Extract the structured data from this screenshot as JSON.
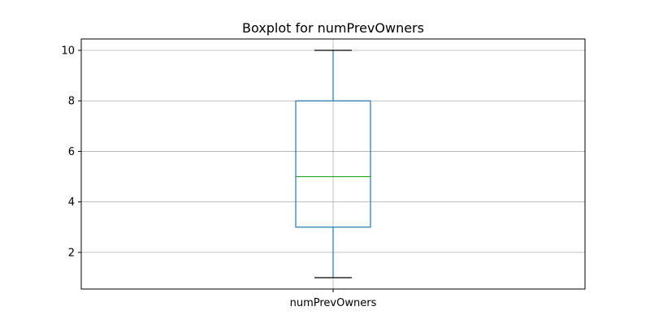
{
  "chart_data": {
    "type": "boxplot",
    "title": "Boxplot for numPrevOwners",
    "xlabel": "",
    "ylabel": "",
    "categories": [
      "numPrevOwners"
    ],
    "boxes": [
      {
        "category": "numPrevOwners",
        "whisker_low": 1,
        "q1": 3,
        "median": 5,
        "q3": 8,
        "whisker_high": 10
      }
    ],
    "ylim": [
      0.55,
      10.45
    ],
    "yticks": [
      2,
      4,
      6,
      8,
      10
    ],
    "grid": true,
    "colors": {
      "box": "#1f77b4",
      "median": "#2ca02c",
      "whisker_cap": "#000000",
      "grid": "#b0b0b0",
      "axes": "#000000"
    }
  }
}
